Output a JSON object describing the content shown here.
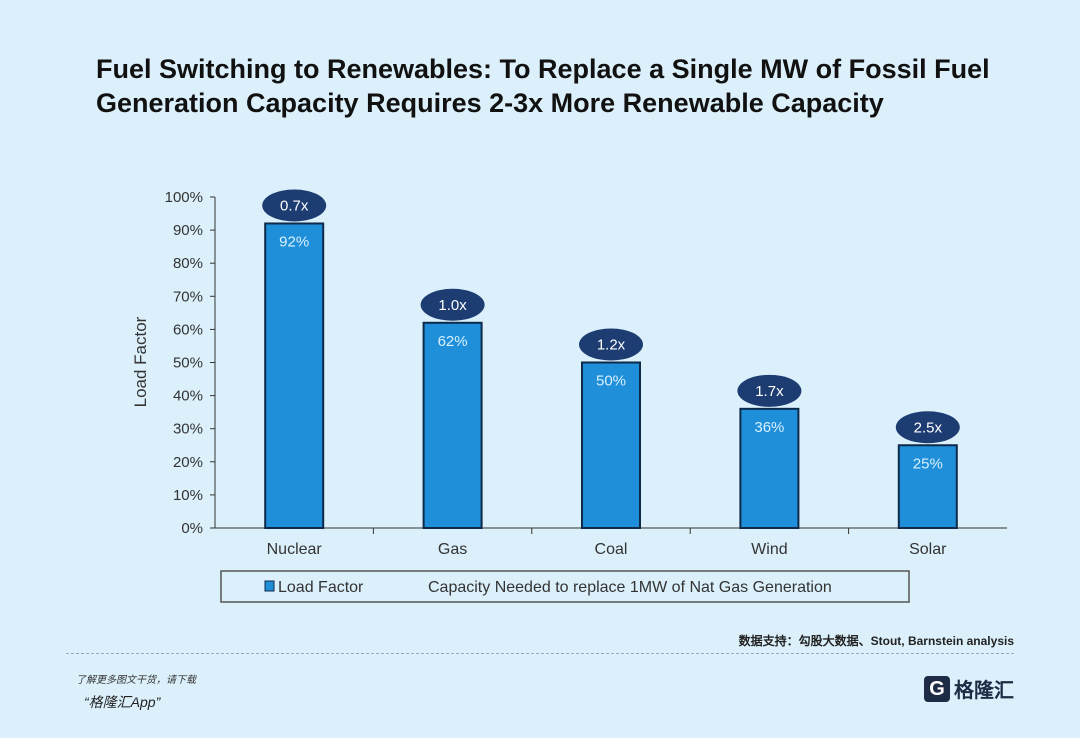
{
  "title": "Fuel Switching to Renewables: To Replace a Single MW of Fossil Fuel Generation Capacity Requires 2-3x More Renewable Capacity",
  "chart_data": {
    "type": "bar",
    "categories": [
      "Nuclear",
      "Gas",
      "Coal",
      "Wind",
      "Solar"
    ],
    "series": [
      {
        "name": "Load Factor",
        "values": [
          92,
          62,
          50,
          36,
          25
        ],
        "labels": [
          "92%",
          "62%",
          "50%",
          "36%",
          "25%"
        ],
        "color": "#1f8fd9"
      },
      {
        "name": "Capacity Needed to replace 1MW of Nat Gas Generation",
        "values": [
          0.7,
          1.0,
          1.2,
          1.7,
          2.5
        ],
        "labels": [
          "0.7x",
          "1.0x",
          "1.2x",
          "1.7x",
          "2.5x"
        ],
        "color": "#1d3c72"
      }
    ],
    "ylabel": "Load Factor",
    "ylim": [
      0,
      100
    ],
    "yticks": [
      "0%",
      "10%",
      "20%",
      "30%",
      "40%",
      "50%",
      "60%",
      "70%",
      "80%",
      "90%",
      "100%"
    ],
    "grid": false,
    "legend": "bottom"
  },
  "source": "数据支持：勾股大数据、Stout, Barnstein analysis",
  "promo": {
    "line1": "了解更多图文干货，请下载",
    "line2": "“格隆汇App”"
  },
  "logo": {
    "mark": "G",
    "text": "格隆汇"
  }
}
